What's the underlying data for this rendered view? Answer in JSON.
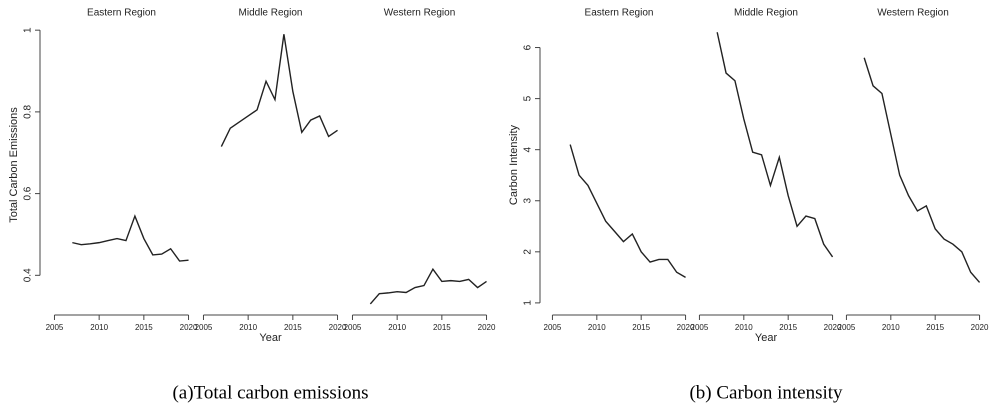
{
  "chart_data": [
    {
      "type": "line",
      "caption": "(a)Total carbon emissions",
      "y_label": "Total Carbon Emissions",
      "x_label": "Year",
      "ylim": [
        0.32,
        1.02
      ],
      "yticks": [
        0.4,
        0.6,
        0.8,
        1
      ],
      "xlim": [
        2004.5,
        2020.5
      ],
      "xticks": [
        2005,
        2010,
        2015,
        2020
      ],
      "color": "#222222",
      "panels": [
        {
          "title": "Eastern Region",
          "x": [
            2007,
            2008,
            2009,
            2010,
            2011,
            2012,
            2013,
            2014,
            2015,
            2016,
            2017,
            2018,
            2019,
            2020
          ],
          "values": [
            0.48,
            0.475,
            0.477,
            0.48,
            0.485,
            0.49,
            0.485,
            0.545,
            0.49,
            0.45,
            0.452,
            0.465,
            0.435,
            0.437
          ]
        },
        {
          "title": "Middle Region",
          "x": [
            2007,
            2008,
            2009,
            2010,
            2011,
            2012,
            2013,
            2014,
            2015,
            2016,
            2017,
            2018,
            2019,
            2020
          ],
          "values": [
            0.715,
            0.76,
            0.775,
            0.79,
            0.805,
            0.875,
            0.83,
            0.99,
            0.85,
            0.75,
            0.78,
            0.79,
            0.74,
            0.755
          ]
        },
        {
          "title": "Western Region",
          "x": [
            2007,
            2008,
            2009,
            2010,
            2011,
            2012,
            2013,
            2014,
            2015,
            2016,
            2017,
            2018,
            2019,
            2020
          ],
          "values": [
            0.33,
            0.355,
            0.357,
            0.36,
            0.358,
            0.37,
            0.375,
            0.415,
            0.385,
            0.387,
            0.385,
            0.39,
            0.37,
            0.385
          ]
        }
      ]
    },
    {
      "type": "line",
      "caption": "(b) Carbon intensity",
      "y_label": "Carbon Intensity",
      "x_label": "Year",
      "ylim": [
        0.9,
        6.5
      ],
      "yticks": [
        1,
        2,
        3,
        4,
        5,
        6
      ],
      "xlim": [
        2004.5,
        2020.5
      ],
      "xticks": [
        2005,
        2010,
        2015,
        2020
      ],
      "color": "#222222",
      "panels": [
        {
          "title": "Eastern Region",
          "x": [
            2007,
            2008,
            2009,
            2010,
            2011,
            2012,
            2013,
            2014,
            2015,
            2016,
            2017,
            2018,
            2019,
            2020
          ],
          "values": [
            4.1,
            3.5,
            3.3,
            2.95,
            2.6,
            2.4,
            2.2,
            2.35,
            2.0,
            1.8,
            1.85,
            1.85,
            1.6,
            1.5
          ]
        },
        {
          "title": "Middle Region",
          "x": [
            2007,
            2008,
            2009,
            2010,
            2011,
            2012,
            2013,
            2014,
            2015,
            2016,
            2017,
            2018,
            2019,
            2020
          ],
          "values": [
            6.3,
            5.5,
            5.35,
            4.6,
            3.95,
            3.9,
            3.3,
            3.85,
            3.1,
            2.5,
            2.7,
            2.65,
            2.15,
            1.9
          ]
        },
        {
          "title": "Western Region",
          "x": [
            2007,
            2008,
            2009,
            2010,
            2011,
            2012,
            2013,
            2014,
            2015,
            2016,
            2017,
            2018,
            2019,
            2020
          ],
          "values": [
            5.8,
            5.25,
            5.1,
            4.3,
            3.5,
            3.1,
            2.8,
            2.9,
            2.45,
            2.25,
            2.15,
            2.0,
            1.6,
            1.4
          ]
        }
      ]
    }
  ]
}
